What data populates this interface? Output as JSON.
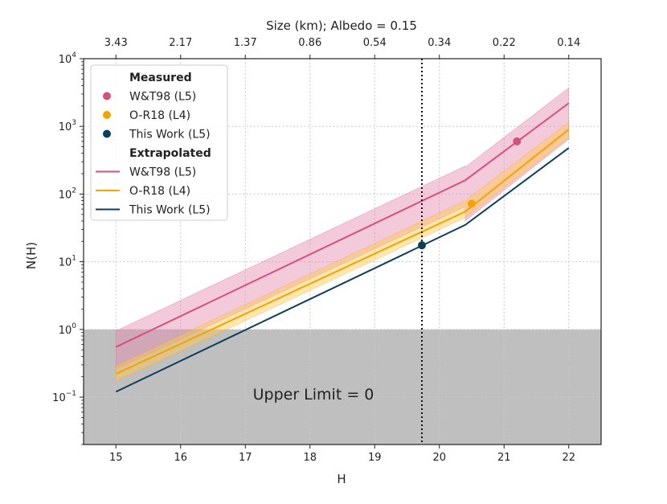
{
  "chart_data": {
    "type": "line",
    "xlabel": "H",
    "ylabel": "N(H)",
    "top_axis_label": "Size (km); Albedo = 0.15",
    "xlim": [
      14.5,
      22.5
    ],
    "ylim_log10": [
      -1.7,
      4
    ],
    "x_ticks": [
      15,
      16,
      17,
      18,
      19,
      20,
      21,
      22
    ],
    "x_tick_labels": [
      "15",
      "16",
      "17",
      "18",
      "19",
      "20",
      "21",
      "22"
    ],
    "y_ticks_log10": [
      -1,
      0,
      1,
      2,
      3,
      4
    ],
    "y_tick_labels": [
      {
        "base": "10",
        "exp": "−1"
      },
      {
        "base": "10",
        "exp": "0"
      },
      {
        "base": "10",
        "exp": "1"
      },
      {
        "base": "10",
        "exp": "2"
      },
      {
        "base": "10",
        "exp": "3"
      },
      {
        "base": "10",
        "exp": "4"
      }
    ],
    "top_ticks": [
      {
        "H": 15,
        "label": "3.43"
      },
      {
        "H": 16,
        "label": "2.17"
      },
      {
        "H": 17,
        "label": "1.37"
      },
      {
        "H": 18,
        "label": "0.86"
      },
      {
        "H": 19,
        "label": "0.54"
      },
      {
        "H": 20,
        "label": "0.34"
      },
      {
        "H": 21,
        "label": "0.22"
      },
      {
        "H": 22,
        "label": "0.14"
      }
    ],
    "vertical_marker_H": 19.73,
    "upper_limit_region": {
      "y_max": 1,
      "label": "Upper Limit = 0"
    },
    "series": [
      {
        "name": "W&T98 (L5)",
        "color": "#d64f7f",
        "band_color": "#e48aae",
        "x": [
          15,
          20.4,
          20.4,
          22
        ],
        "y": [
          0.55,
          160,
          160,
          2200
        ],
        "band_x": [
          15,
          20.4,
          20.4,
          22
        ],
        "band_low": [
          0.26,
          65,
          40,
          650
        ],
        "band_high": [
          0.95,
          260,
          250,
          3700
        ]
      },
      {
        "name": "O-R18 (L4)",
        "color": "#f5a300",
        "band_color": "#ffc94d",
        "x": [
          15,
          20.4,
          20.4,
          22
        ],
        "y": [
          0.22,
          55,
          55,
          900
        ],
        "band_x": [
          15,
          20.4,
          20.4,
          22
        ],
        "band_low": [
          0.17,
          45,
          45,
          680
        ],
        "band_high": [
          0.29,
          80,
          80,
          1150
        ]
      },
      {
        "name": "This Work (L5)",
        "color": "#0d3f5b",
        "x": [
          15,
          20.4,
          22
        ],
        "y": [
          0.12,
          35,
          480
        ]
      }
    ],
    "measured": [
      {
        "name": "W&T98 (L5)",
        "color": "#d64f7f",
        "H": 21.2,
        "N": 600
      },
      {
        "name": "O-R18 (L4)",
        "color": "#f5a300",
        "H": 20.5,
        "N": 72
      },
      {
        "name": "This Work (L5)",
        "color": "#0d3f5b",
        "H": 19.73,
        "N": 17.5,
        "N_low": 15.5,
        "N_high": 20
      }
    ],
    "legend": {
      "location": "upper-left",
      "measured_header": "Measured",
      "extrapolated_header": "Extrapolated",
      "measured_entries": [
        {
          "label": "W&T98 (L5)",
          "color": "#d64f7f"
        },
        {
          "label": "O-R18 (L4)",
          "color": "#f5a300"
        },
        {
          "label": "This Work (L5)",
          "color": "#0d3f5b"
        }
      ],
      "extrapolated_entries": [
        {
          "label": "W&T98 (L5)",
          "color": "#d64f7f"
        },
        {
          "label": "O-R18 (L4)",
          "color": "#f5a300"
        },
        {
          "label": "This Work (L5)",
          "color": "#0d3f5b"
        }
      ]
    }
  }
}
